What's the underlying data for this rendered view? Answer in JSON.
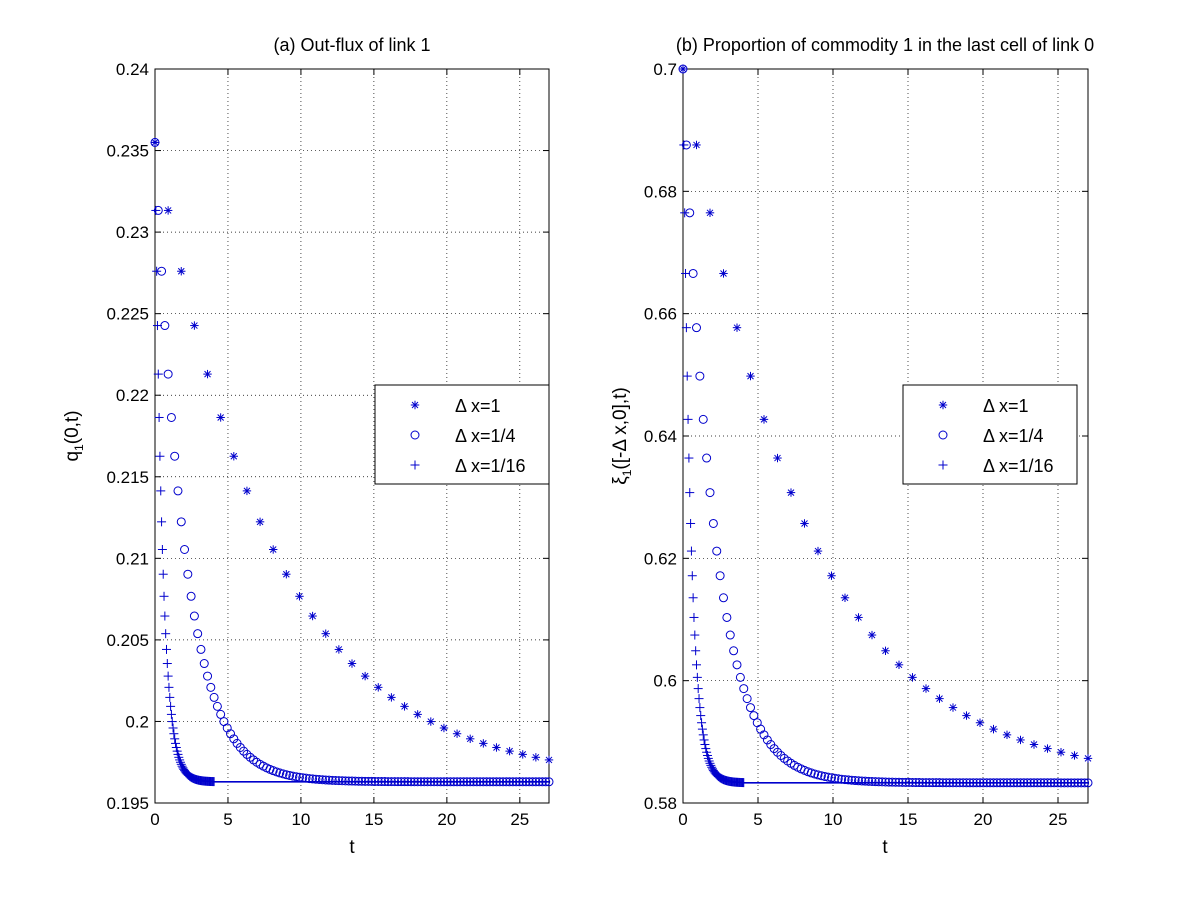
{
  "chart_data": [
    {
      "type": "scatter",
      "title": "(a) Out-flux of link 1",
      "xlabel": "t",
      "ylabel": {
        "base": "q",
        "sub": "1",
        "rest": "(0,t)"
      },
      "xlim": [
        0,
        27
      ],
      "ylim": [
        0.195,
        0.24
      ],
      "xticks": [
        0,
        5,
        10,
        15,
        20,
        25
      ],
      "yticks": [
        0.195,
        0.2,
        0.205,
        0.21,
        0.215,
        0.22,
        0.225,
        0.23,
        0.235,
        0.24
      ],
      "ytick_labels": [
        "0.195",
        "0.2",
        "0.205",
        "0.21",
        "0.215",
        "0.22",
        "0.225",
        "0.23",
        "0.235",
        "0.24"
      ],
      "grid": true,
      "legend_position": "center-right",
      "color": "#0000cc",
      "series": [
        {
          "name": "Δ x=1",
          "legend_symbol": "Δ",
          "legend_text": "x=1",
          "marker": "star",
          "dt": 0.9,
          "y0": 0.2355,
          "y_inf": 0.1963,
          "tau": 8.0
        },
        {
          "name": "Δ x=1/4",
          "legend_symbol": "Δ",
          "legend_text": "x=1/4",
          "marker": "circle",
          "dt": 0.225,
          "y0": 0.2355,
          "y_inf": 0.1963,
          "tau": 2.0
        },
        {
          "name": "Δ x=1/16",
          "legend_symbol": "Δ",
          "legend_text": "x=1/16",
          "marker": "plus",
          "dt": 0.05625,
          "y0": 0.2355,
          "y_inf": 0.1963,
          "tau": 0.5,
          "t_max": 4.0
        }
      ]
    },
    {
      "type": "scatter",
      "title": "(b) Proportion of commodity 1 in the last cell of link 0",
      "xlabel": "t",
      "ylabel": {
        "base": "ξ",
        "sub": "1",
        "rest": "([-Δ x,0],t)"
      },
      "xlim": [
        0,
        27
      ],
      "ylim": [
        0.58,
        0.7
      ],
      "xticks": [
        0,
        5,
        10,
        15,
        20,
        25
      ],
      "yticks": [
        0.58,
        0.6,
        0.62,
        0.64,
        0.66,
        0.68,
        0.7
      ],
      "ytick_labels": [
        "0.58",
        "0.6",
        "0.62",
        "0.64",
        "0.66",
        "0.68",
        "0.7"
      ],
      "grid": true,
      "legend_position": "center-right",
      "color": "#0000cc",
      "series": [
        {
          "name": "Δ x=1",
          "legend_symbol": "Δ",
          "legend_text": "x=1",
          "marker": "star",
          "dt": 0.9,
          "y0": 0.7,
          "y_inf": 0.5833,
          "tau": 8.0
        },
        {
          "name": "Δ x=1/4",
          "legend_symbol": "Δ",
          "legend_text": "x=1/4",
          "marker": "circle",
          "dt": 0.225,
          "y0": 0.7,
          "y_inf": 0.5833,
          "tau": 2.0
        },
        {
          "name": "Δ x=1/16",
          "legend_symbol": "Δ",
          "legend_text": "x=1/16",
          "marker": "plus",
          "dt": 0.05625,
          "y0": 0.7,
          "y_inf": 0.5833,
          "tau": 0.5,
          "t_max": 4.0
        }
      ]
    }
  ]
}
